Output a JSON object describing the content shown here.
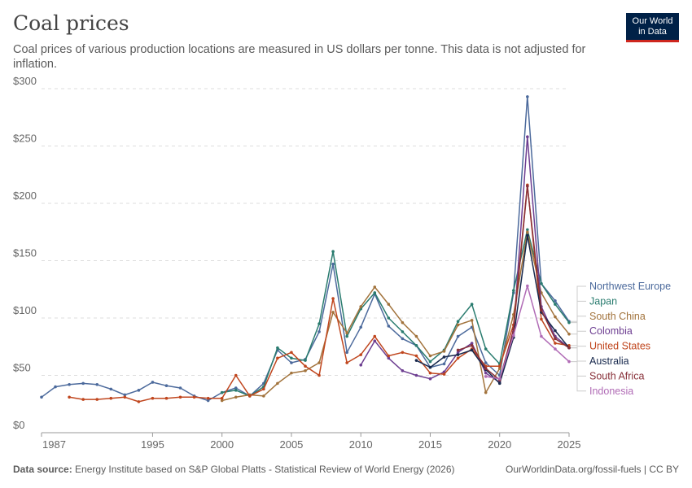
{
  "header": {
    "title": "Coal prices",
    "subtitle": "Coal prices of various production locations are measured in US dollars per tonne. This data is not adjusted for inflation."
  },
  "logo": {
    "line1": "Our World",
    "line2": "in Data"
  },
  "footer": {
    "source_label": "Data source:",
    "source_text": "Energy Institute based on S&P Global Platts - Statistical Review of World Energy (2026)",
    "url": "OurWorldinData.org/fossil-fuels | CC BY"
  },
  "chart_data": {
    "type": "line",
    "ylim": [
      0,
      300
    ],
    "xlim": [
      1987,
      2025
    ],
    "y_ticks": [
      0,
      50,
      100,
      150,
      200,
      250,
      300
    ],
    "y_tick_labels": [
      "$0",
      "$50",
      "$100",
      "$150",
      "$200",
      "$250",
      "$300"
    ],
    "x_ticks": [
      1987,
      1995,
      2000,
      2005,
      2010,
      2015,
      2020,
      2025
    ],
    "x_tick_labels": [
      "1987",
      "1995",
      "2000",
      "2005",
      "2010",
      "2015",
      "2020",
      "2025"
    ],
    "grid": "horizontal-dashed",
    "legend_placement": "right",
    "series": [
      {
        "name": "Northwest Europe",
        "color": "#4c6a9c",
        "x": [
          1987,
          1988,
          1989,
          1990,
          1991,
          1992,
          1993,
          1994,
          1995,
          1996,
          1997,
          1998,
          1999,
          2000,
          2001,
          2002,
          2003,
          2004,
          2005,
          2006,
          2007,
          2008,
          2009,
          2010,
          2011,
          2012,
          2013,
          2014,
          2015,
          2016,
          2017,
          2018,
          2019,
          2020,
          2021,
          2022,
          2023,
          2024,
          2025
        ],
        "y": [
          31,
          40,
          42,
          43,
          42,
          38,
          33,
          37,
          44,
          41,
          39,
          32,
          28,
          35,
          39,
          32,
          43,
          72,
          61,
          64,
          88,
          147,
          70,
          92,
          121,
          93,
          82,
          76,
          57,
          60,
          84,
          92,
          61,
          50,
          122,
          293,
          130,
          115,
          97
        ]
      },
      {
        "name": "Japan",
        "color": "#2a7c6f",
        "x": [
          2000,
          2001,
          2002,
          2003,
          2004,
          2005,
          2006,
          2007,
          2008,
          2009,
          2010,
          2011,
          2012,
          2013,
          2014,
          2015,
          2016,
          2017,
          2018,
          2019,
          2020,
          2021,
          2022,
          2023,
          2024,
          2025
        ],
        "y": [
          35,
          37,
          32,
          40,
          74,
          65,
          63,
          95,
          158,
          84,
          108,
          122,
          100,
          88,
          76,
          62,
          72,
          97,
          112,
          73,
          60,
          124,
          177,
          130,
          112,
          96
        ]
      },
      {
        "name": "South China",
        "color": "#a2733c",
        "x": [
          2000,
          2001,
          2002,
          2003,
          2004,
          2005,
          2006,
          2007,
          2008,
          2009,
          2010,
          2011,
          2012,
          2013,
          2014,
          2015,
          2016,
          2017,
          2018,
          2019,
          2020,
          2021,
          2022,
          2023,
          2024,
          2025
        ],
        "y": [
          28,
          31,
          33,
          32,
          43,
          52,
          54,
          61,
          105,
          87,
          110,
          127,
          112,
          96,
          84,
          67,
          71,
          94,
          98,
          35,
          56,
          103,
          175,
          122,
          101,
          86
        ]
      },
      {
        "name": "Colombia",
        "color": "#6d3e91",
        "x": [
          2010,
          2011,
          2012,
          2013,
          2014,
          2015,
          2016,
          2017,
          2018,
          2019,
          2020,
          2021,
          2022,
          2023,
          2024,
          2025
        ],
        "y": [
          59,
          80,
          65,
          54,
          50,
          47,
          53,
          70,
          78,
          52,
          44,
          88,
          258,
          110,
          84,
          74
        ]
      },
      {
        "name": "United States",
        "color": "#c0461e",
        "x": [
          1989,
          1990,
          1991,
          1992,
          1993,
          1994,
          1995,
          1996,
          1997,
          1998,
          1999,
          2000,
          2001,
          2002,
          2003,
          2004,
          2005,
          2006,
          2007,
          2008,
          2009,
          2010,
          2011,
          2012,
          2013,
          2014,
          2015,
          2016,
          2017,
          2018,
          2019,
          2020,
          2021,
          2022,
          2023,
          2024,
          2025
        ],
        "y": [
          31,
          29,
          29,
          30,
          31,
          27,
          30,
          30,
          31,
          31,
          30,
          30,
          50,
          32,
          38,
          65,
          70,
          58,
          50,
          117,
          61,
          68,
          84,
          67,
          70,
          67,
          52,
          51,
          65,
          73,
          58,
          58,
          94,
          216,
          99,
          78,
          76
        ]
      },
      {
        "name": "Australia",
        "color": "#18294d",
        "x": [
          2014,
          2015,
          2016,
          2017,
          2018,
          2019,
          2020,
          2021,
          2022,
          2023,
          2024,
          2025
        ],
        "y": [
          63,
          57,
          66,
          68,
          72,
          55,
          43,
          83,
          172,
          105,
          89,
          74
        ]
      },
      {
        "name": "South Africa",
        "color": "#883039",
        "x": [
          2017,
          2018,
          2019,
          2020,
          2021,
          2022,
          2023,
          2024,
          2025
        ],
        "y": [
          72,
          76,
          56,
          46,
          90,
          215,
          107,
          82,
          74
        ]
      },
      {
        "name": "Indonesia",
        "color": "#b16cb6",
        "x": [
          2019,
          2020,
          2021,
          2022,
          2023,
          2024,
          2025
        ],
        "y": [
          49,
          47,
          85,
          128,
          84,
          73,
          62
        ]
      }
    ]
  }
}
